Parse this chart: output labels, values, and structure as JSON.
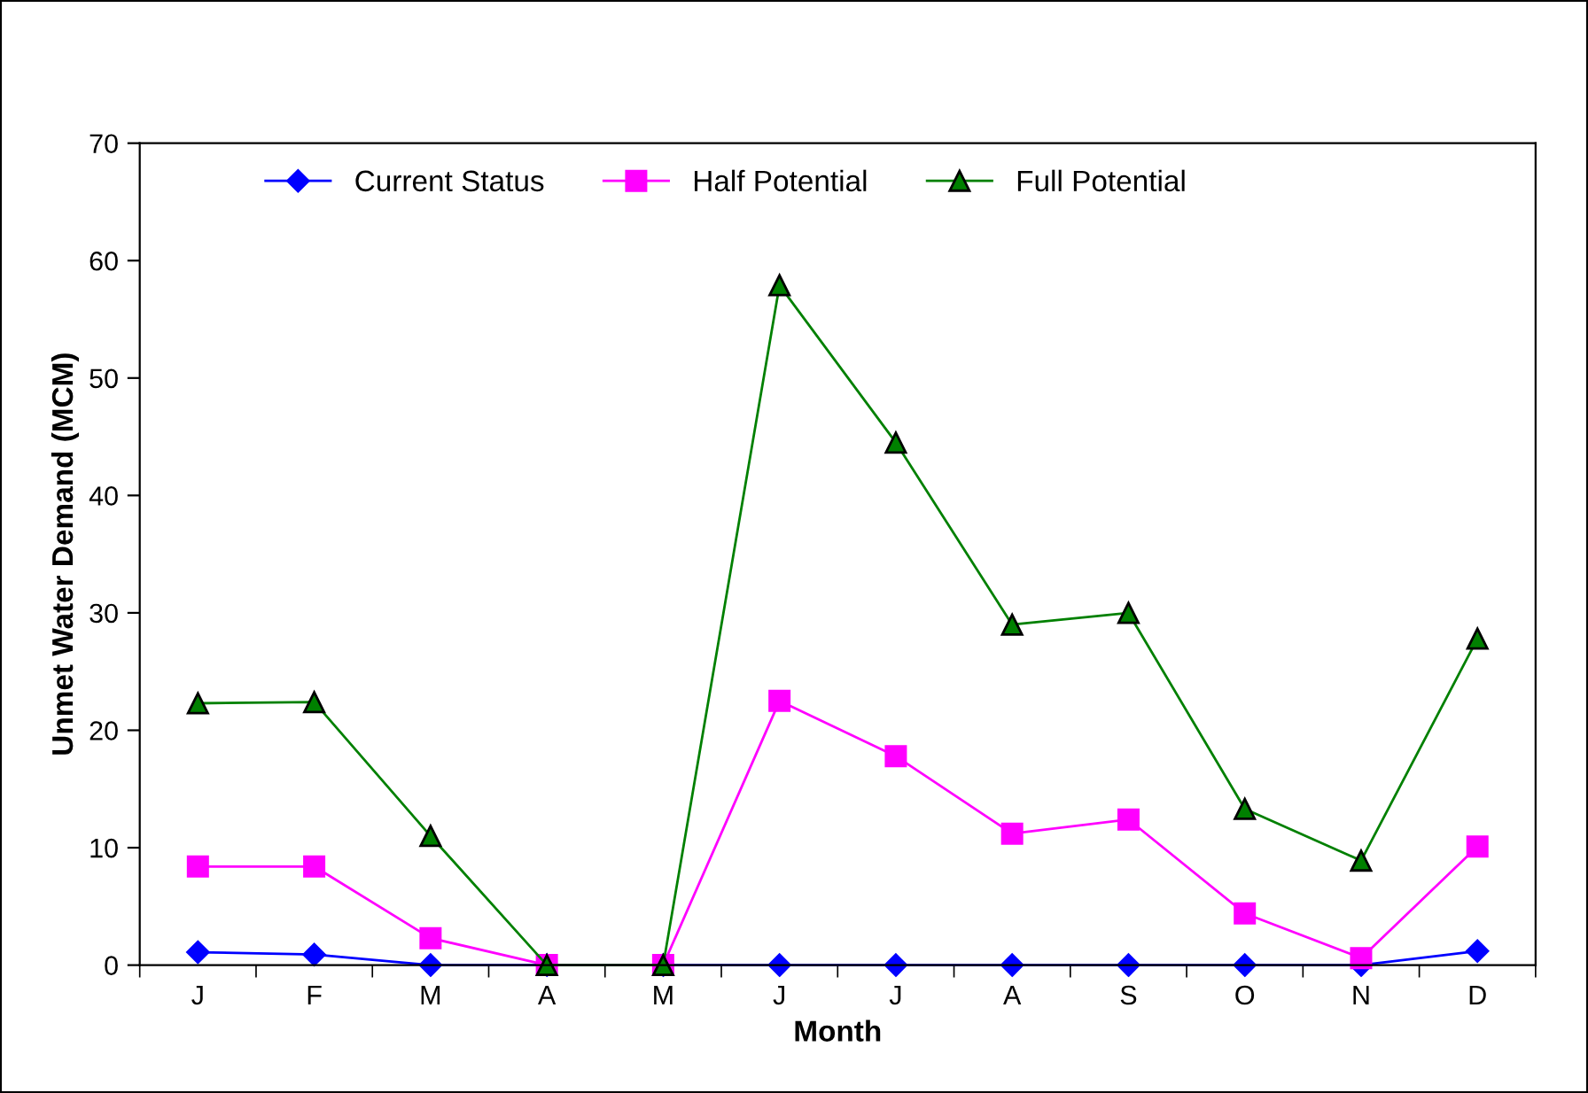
{
  "chart_data": {
    "type": "line",
    "xlabel": "Month",
    "ylabel": "Unmet Water Demand (MCM)",
    "categories": [
      "J",
      "F",
      "M",
      "A",
      "M",
      "J",
      "J",
      "A",
      "S",
      "O",
      "N",
      "D"
    ],
    "series": [
      {
        "name": "Current Status",
        "color": "#0000ff",
        "marker": "diamond",
        "values": [
          1.1,
          0.9,
          0,
          0,
          0,
          0,
          0,
          0,
          0,
          0,
          0,
          1.2
        ]
      },
      {
        "name": "Half Potential",
        "color": "#ff00ff",
        "marker": "square",
        "values": [
          8.4,
          8.4,
          2.3,
          0,
          0,
          22.5,
          17.8,
          11.2,
          12.4,
          4.4,
          0.6,
          10.1
        ]
      },
      {
        "name": "Full Potential",
        "color": "#008000",
        "marker": "triangle",
        "values": [
          22.3,
          22.4,
          11.0,
          0,
          0,
          57.9,
          44.5,
          29.0,
          30.0,
          13.3,
          8.9,
          27.8
        ]
      }
    ],
    "ylim": [
      0,
      70
    ],
    "yticks": [
      0,
      10,
      20,
      30,
      40,
      50,
      60,
      70
    ],
    "grid": false,
    "legend": "top",
    "line_style": "solid"
  }
}
